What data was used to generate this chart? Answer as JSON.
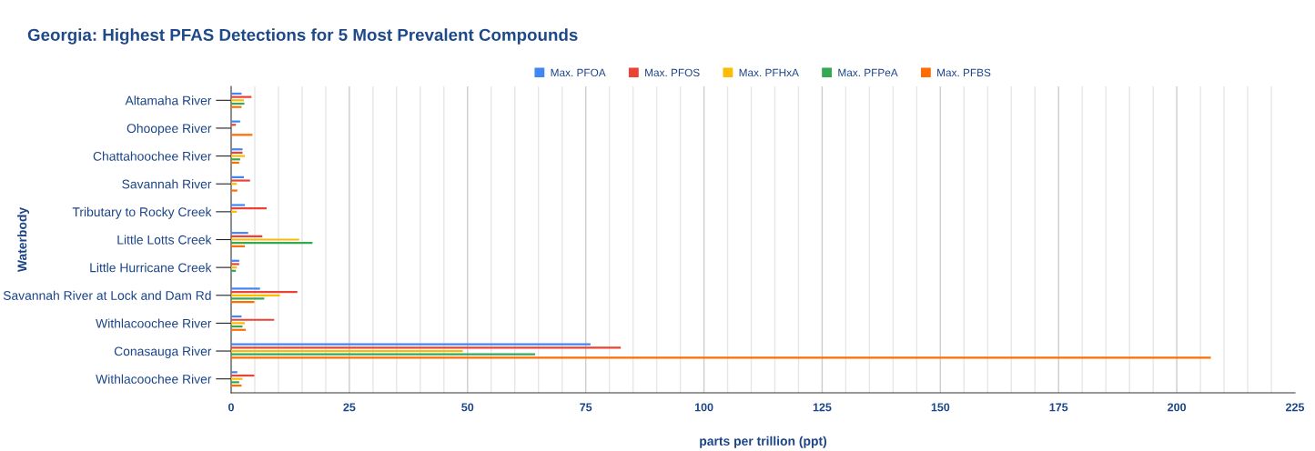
{
  "chart_data": {
    "type": "bar",
    "orientation": "horizontal",
    "title": "Georgia: Highest PFAS Detections for 5 Most Prevalent Compounds",
    "xlabel": "parts per trillion (ppt)",
    "ylabel": "Waterbody",
    "categories": [
      "Altamaha River",
      "Ohoopee River",
      "Chattahoochee River",
      "Savannah River",
      "Tributary to Rocky Creek",
      "Little Lotts Creek",
      "Little Hurricane Creek",
      "Savannah River at Lock and Dam Rd",
      "Withlacoochee River",
      "Conasauga River",
      "Withlacoochee River"
    ],
    "series": [
      {
        "name": "Max. PFOA",
        "color": "#4285f4",
        "values": [
          2.2,
          1.9,
          2.4,
          2.7,
          2.9,
          3.6,
          1.7,
          6.1,
          2.2,
          76.0,
          1.3
        ]
      },
      {
        "name": "Max. PFOS",
        "color": "#ea4335",
        "values": [
          4.3,
          1.0,
          2.4,
          4.0,
          7.5,
          6.6,
          1.7,
          14.0,
          9.1,
          82.4,
          4.9
        ]
      },
      {
        "name": "Max. PFHxA",
        "color": "#fbbc04",
        "values": [
          2.7,
          null,
          2.9,
          1.2,
          1.2,
          14.4,
          1.2,
          10.3,
          2.9,
          49.0,
          2.4
        ]
      },
      {
        "name": "Max. PFPeA",
        "color": "#34a853",
        "values": [
          2.8,
          null,
          1.9,
          null,
          null,
          17.2,
          1.0,
          7.0,
          2.4,
          64.3,
          1.7
        ]
      },
      {
        "name": "Max. PFBS",
        "color": "#ff6d01",
        "values": [
          2.2,
          4.5,
          1.7,
          1.3,
          null,
          2.9,
          null,
          4.9,
          3.1,
          207.2,
          2.2
        ]
      }
    ],
    "xlim": [
      0,
      225
    ],
    "xticks": [
      0,
      25,
      50,
      75,
      100,
      125,
      150,
      175,
      200,
      225
    ],
    "grid": "x",
    "legend": "top"
  }
}
